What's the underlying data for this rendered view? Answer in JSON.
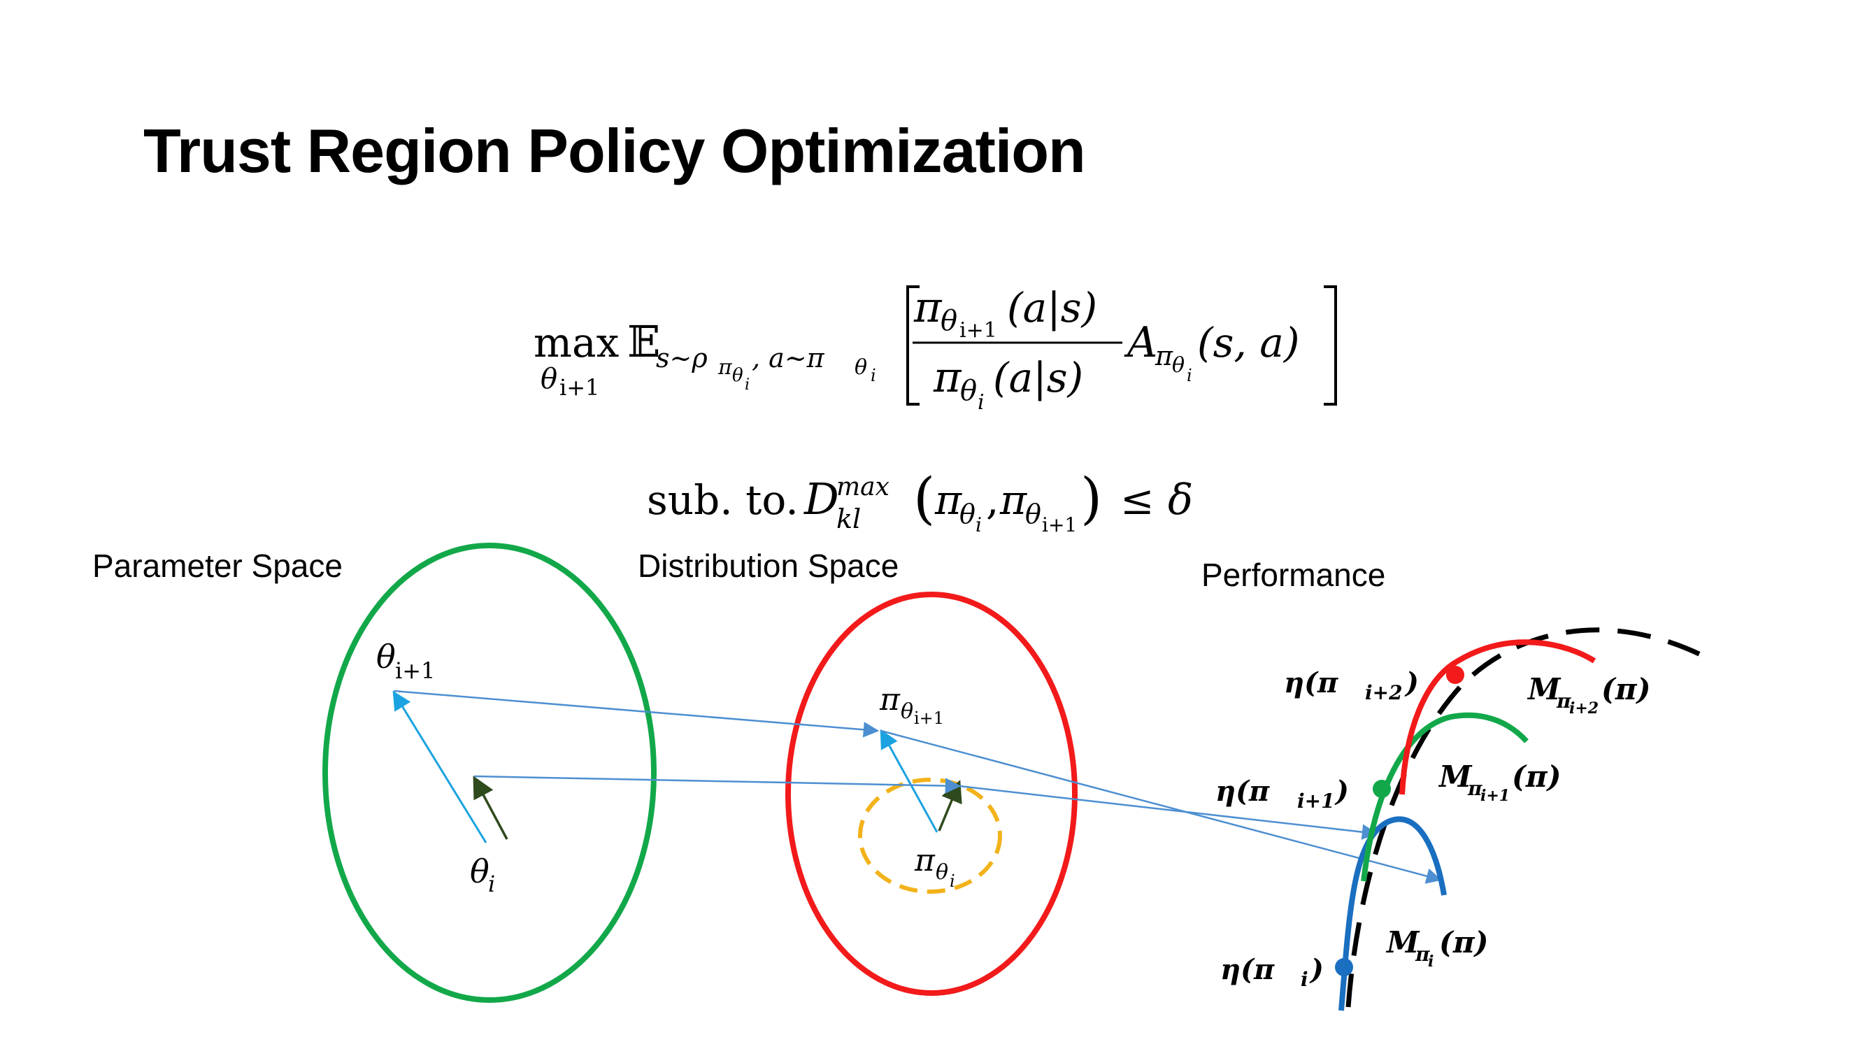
{
  "title": "Trust Region Policy Optimization",
  "objective": {
    "max": "max",
    "max_sub": "θ",
    "max_sub_index": "i+1",
    "expect": "𝔼",
    "expect_sub": "s~ρ",
    "expect_sub2": "π",
    "expect_sub3": "θ",
    "expect_sub3_index": "i",
    "expect_sub4": ", a~π",
    "expect_sub5": "θ",
    "expect_sub5_index": "i",
    "numerator_pi": "π",
    "numerator_theta": "θ",
    "numerator_index": "i+1",
    "numerator_arg": "(a|s)",
    "denominator_pi": "π",
    "denominator_theta": "θ",
    "denominator_index": "i",
    "denominator_arg": "(a|s)",
    "adv": "A",
    "adv_pi": "π",
    "adv_theta": "θ",
    "adv_index": "i",
    "adv_arg": "(s, a)"
  },
  "constraint": {
    "subto": "sub. to.",
    "D": "D",
    "D_sup": "max",
    "D_sub": "kl",
    "open": "(",
    "pi1": "π",
    "theta1": "θ",
    "index1": "i",
    "comma": ",",
    "pi2": "π",
    "theta2": "θ",
    "index2": "i+1",
    "close": ")",
    "leq": "≤",
    "delta": "δ"
  },
  "diagram": {
    "parameter_space_label": "Parameter Space",
    "distribution_space_label": "Distribution Space",
    "performance_label": "Performance",
    "theta_next": "θ",
    "theta_next_index": "i+1",
    "theta_i": "θ",
    "theta_i_index": "i",
    "pi_next": "π",
    "pi_next_theta": "θ",
    "pi_next_index": "i+1",
    "pi_i": "π",
    "pi_i_theta": "θ",
    "pi_i_index": "i",
    "eta_i2": "η(π",
    "eta_i2_index": "i+2",
    "eta_i1": "η(π",
    "eta_i1_index": "i+1",
    "eta_i": "η(π",
    "eta_i_index": "i",
    "close_paren": ")",
    "M_i2": "M",
    "M_i2_pi": "π",
    "M_i2_index": "i+2",
    "M_i1": "M",
    "M_i1_pi": "π",
    "M_i1_index": "i+1",
    "M_i": "M",
    "M_i_pi": "π",
    "M_i_index": "i",
    "M_arg": "(π)"
  },
  "colors": {
    "green": "#12a84a",
    "red": "#f21a1a",
    "blue": "#1a6fc0",
    "orange": "#f2b21a",
    "arrow_blue": "#4d8fd1",
    "arrow_dark": "#2f4a1c"
  }
}
